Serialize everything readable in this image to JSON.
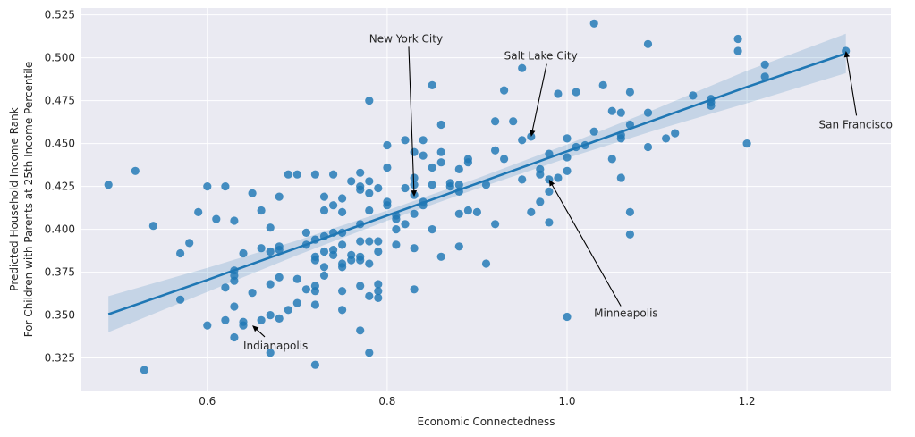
{
  "chart_data": {
    "type": "scatter",
    "title": "",
    "xlabel": "Economic Connectedness",
    "ylabel_lines": [
      "Predicted Household Income Rank",
      "For Children with Parents at 25th Income Percentile"
    ],
    "xlim": [
      0.46,
      1.36
    ],
    "ylim": [
      0.306,
      0.529
    ],
    "xticks": [
      0.6,
      0.8,
      1.0,
      1.2
    ],
    "xtick_labels": [
      "0.6",
      "0.8",
      "1.0",
      "1.2"
    ],
    "yticks": [
      0.325,
      0.35,
      0.375,
      0.4,
      0.425,
      0.45,
      0.475,
      0.5,
      0.525
    ],
    "ytick_labels": [
      "0.325",
      "0.350",
      "0.375",
      "0.400",
      "0.425",
      "0.450",
      "0.475",
      "0.500",
      "0.525"
    ],
    "grid": true,
    "colors": {
      "background": "#eaeaf2",
      "points": "#1f77b4",
      "line": "#1f77b4",
      "band": "#1f77b4",
      "grid": "#ffffff"
    },
    "regression": {
      "x": [
        0.49,
        0.6,
        0.7,
        0.8,
        0.9,
        1.0,
        1.1,
        1.2,
        1.31
      ],
      "y": [
        0.3505,
        0.3705,
        0.3892,
        0.408,
        0.4267,
        0.4455,
        0.4643,
        0.483,
        0.5025
      ],
      "upper": [
        0.361,
        0.3775,
        0.3935,
        0.411,
        0.4297,
        0.4495,
        0.4705,
        0.4925,
        0.514
      ],
      "lower": [
        0.34,
        0.3635,
        0.3849,
        0.405,
        0.4237,
        0.4415,
        0.4581,
        0.4735,
        0.491
      ]
    },
    "points": [
      [
        0.49,
        0.426
      ],
      [
        0.52,
        0.434
      ],
      [
        0.53,
        0.318
      ],
      [
        0.54,
        0.402
      ],
      [
        0.57,
        0.386
      ],
      [
        0.57,
        0.359
      ],
      [
        0.58,
        0.392
      ],
      [
        0.59,
        0.41
      ],
      [
        0.6,
        0.344
      ],
      [
        0.6,
        0.425
      ],
      [
        0.61,
        0.406
      ],
      [
        0.62,
        0.425
      ],
      [
        0.62,
        0.366
      ],
      [
        0.62,
        0.347
      ],
      [
        0.63,
        0.405
      ],
      [
        0.63,
        0.376
      ],
      [
        0.63,
        0.373
      ],
      [
        0.63,
        0.37
      ],
      [
        0.63,
        0.355
      ],
      [
        0.63,
        0.337
      ],
      [
        0.64,
        0.386
      ],
      [
        0.64,
        0.346
      ],
      [
        0.64,
        0.344
      ],
      [
        0.65,
        0.421
      ],
      [
        0.65,
        0.363
      ],
      [
        0.66,
        0.411
      ],
      [
        0.66,
        0.389
      ],
      [
        0.66,
        0.347
      ],
      [
        0.67,
        0.401
      ],
      [
        0.67,
        0.387
      ],
      [
        0.67,
        0.368
      ],
      [
        0.67,
        0.35
      ],
      [
        0.67,
        0.328
      ],
      [
        0.68,
        0.419
      ],
      [
        0.68,
        0.39
      ],
      [
        0.68,
        0.388
      ],
      [
        0.68,
        0.372
      ],
      [
        0.68,
        0.348
      ],
      [
        0.69,
        0.432
      ],
      [
        0.69,
        0.353
      ],
      [
        0.7,
        0.432
      ],
      [
        0.7,
        0.371
      ],
      [
        0.7,
        0.357
      ],
      [
        0.71,
        0.398
      ],
      [
        0.71,
        0.391
      ],
      [
        0.71,
        0.365
      ],
      [
        0.72,
        0.432
      ],
      [
        0.72,
        0.394
      ],
      [
        0.72,
        0.384
      ],
      [
        0.72,
        0.382
      ],
      [
        0.72,
        0.367
      ],
      [
        0.72,
        0.364
      ],
      [
        0.72,
        0.356
      ],
      [
        0.72,
        0.321
      ],
      [
        0.73,
        0.419
      ],
      [
        0.73,
        0.411
      ],
      [
        0.73,
        0.396
      ],
      [
        0.73,
        0.387
      ],
      [
        0.73,
        0.378
      ],
      [
        0.73,
        0.373
      ],
      [
        0.74,
        0.432
      ],
      [
        0.74,
        0.414
      ],
      [
        0.74,
        0.398
      ],
      [
        0.74,
        0.388
      ],
      [
        0.74,
        0.385
      ],
      [
        0.75,
        0.418
      ],
      [
        0.75,
        0.41
      ],
      [
        0.75,
        0.398
      ],
      [
        0.75,
        0.391
      ],
      [
        0.75,
        0.38
      ],
      [
        0.75,
        0.378
      ],
      [
        0.75,
        0.364
      ],
      [
        0.75,
        0.353
      ],
      [
        0.76,
        0.428
      ],
      [
        0.76,
        0.385
      ],
      [
        0.76,
        0.382
      ],
      [
        0.77,
        0.433
      ],
      [
        0.77,
        0.425
      ],
      [
        0.77,
        0.423
      ],
      [
        0.77,
        0.403
      ],
      [
        0.77,
        0.393
      ],
      [
        0.77,
        0.384
      ],
      [
        0.77,
        0.382
      ],
      [
        0.77,
        0.367
      ],
      [
        0.77,
        0.341
      ],
      [
        0.78,
        0.475
      ],
      [
        0.78,
        0.428
      ],
      [
        0.78,
        0.421
      ],
      [
        0.78,
        0.411
      ],
      [
        0.78,
        0.393
      ],
      [
        0.78,
        0.38
      ],
      [
        0.78,
        0.361
      ],
      [
        0.78,
        0.328
      ],
      [
        0.79,
        0.424
      ],
      [
        0.79,
        0.393
      ],
      [
        0.79,
        0.387
      ],
      [
        0.79,
        0.368
      ],
      [
        0.79,
        0.364
      ],
      [
        0.79,
        0.36
      ],
      [
        0.8,
        0.449
      ],
      [
        0.8,
        0.436
      ],
      [
        0.8,
        0.416
      ],
      [
        0.8,
        0.414
      ],
      [
        0.81,
        0.408
      ],
      [
        0.81,
        0.406
      ],
      [
        0.81,
        0.4
      ],
      [
        0.81,
        0.391
      ],
      [
        0.82,
        0.452
      ],
      [
        0.82,
        0.424
      ],
      [
        0.82,
        0.403
      ],
      [
        0.83,
        0.445
      ],
      [
        0.83,
        0.43
      ],
      [
        0.83,
        0.426
      ],
      [
        0.83,
        0.42
      ],
      [
        0.83,
        0.409
      ],
      [
        0.83,
        0.389
      ],
      [
        0.83,
        0.365
      ],
      [
        0.84,
        0.452
      ],
      [
        0.84,
        0.443
      ],
      [
        0.84,
        0.416
      ],
      [
        0.84,
        0.414
      ],
      [
        0.85,
        0.484
      ],
      [
        0.85,
        0.436
      ],
      [
        0.85,
        0.426
      ],
      [
        0.85,
        0.4
      ],
      [
        0.86,
        0.461
      ],
      [
        0.86,
        0.445
      ],
      [
        0.86,
        0.439
      ],
      [
        0.86,
        0.384
      ],
      [
        0.87,
        0.427
      ],
      [
        0.87,
        0.425
      ],
      [
        0.88,
        0.435
      ],
      [
        0.88,
        0.426
      ],
      [
        0.88,
        0.422
      ],
      [
        0.88,
        0.409
      ],
      [
        0.88,
        0.39
      ],
      [
        0.89,
        0.441
      ],
      [
        0.89,
        0.439
      ],
      [
        0.89,
        0.411
      ],
      [
        0.9,
        0.41
      ],
      [
        0.91,
        0.426
      ],
      [
        0.91,
        0.38
      ],
      [
        0.92,
        0.463
      ],
      [
        0.92,
        0.446
      ],
      [
        0.92,
        0.403
      ],
      [
        0.93,
        0.481
      ],
      [
        0.93,
        0.441
      ],
      [
        0.94,
        0.463
      ],
      [
        0.95,
        0.494
      ],
      [
        0.95,
        0.452
      ],
      [
        0.95,
        0.429
      ],
      [
        0.96,
        0.454
      ],
      [
        0.96,
        0.41
      ],
      [
        0.97,
        0.435
      ],
      [
        0.97,
        0.432
      ],
      [
        0.97,
        0.416
      ],
      [
        0.98,
        0.444
      ],
      [
        0.98,
        0.429
      ],
      [
        0.98,
        0.422
      ],
      [
        0.98,
        0.404
      ],
      [
        0.99,
        0.479
      ],
      [
        0.99,
        0.43
      ],
      [
        1.0,
        0.453
      ],
      [
        1.0,
        0.442
      ],
      [
        1.0,
        0.434
      ],
      [
        1.0,
        0.349
      ],
      [
        1.01,
        0.48
      ],
      [
        1.01,
        0.448
      ],
      [
        1.02,
        0.449
      ],
      [
        1.03,
        0.52
      ],
      [
        1.03,
        0.457
      ],
      [
        1.04,
        0.484
      ],
      [
        1.05,
        0.469
      ],
      [
        1.05,
        0.441
      ],
      [
        1.06,
        0.468
      ],
      [
        1.06,
        0.455
      ],
      [
        1.06,
        0.453
      ],
      [
        1.06,
        0.43
      ],
      [
        1.07,
        0.48
      ],
      [
        1.07,
        0.461
      ],
      [
        1.07,
        0.41
      ],
      [
        1.07,
        0.397
      ],
      [
        1.09,
        0.508
      ],
      [
        1.09,
        0.468
      ],
      [
        1.09,
        0.448
      ],
      [
        1.11,
        0.453
      ],
      [
        1.12,
        0.456
      ],
      [
        1.14,
        0.478
      ],
      [
        1.16,
        0.476
      ],
      [
        1.16,
        0.474
      ],
      [
        1.16,
        0.472
      ],
      [
        1.19,
        0.511
      ],
      [
        1.19,
        0.504
      ],
      [
        1.2,
        0.45
      ],
      [
        1.22,
        0.496
      ],
      [
        1.22,
        0.489
      ],
      [
        1.31,
        0.504
      ]
    ],
    "annotations": [
      {
        "text": "New York City",
        "xy": [
          0.83,
          0.419
        ],
        "xytext": [
          0.78,
          0.509
        ],
        "anchor": "start"
      },
      {
        "text": "Salt Lake City",
        "xy": [
          0.96,
          0.454
        ],
        "xytext": [
          0.93,
          0.499
        ],
        "anchor": "start"
      },
      {
        "text": "San Francisco",
        "xy": [
          1.31,
          0.504
        ],
        "xytext": [
          1.28,
          0.459
        ],
        "anchor": "start"
      },
      {
        "text": "Minneapolis",
        "xy": [
          0.98,
          0.429
        ],
        "xytext": [
          1.03,
          0.349
        ],
        "anchor": "start"
      },
      {
        "text": "Indianapolis",
        "xy": [
          0.65,
          0.344
        ],
        "xytext": [
          0.64,
          0.33
        ],
        "anchor": "start"
      }
    ]
  }
}
